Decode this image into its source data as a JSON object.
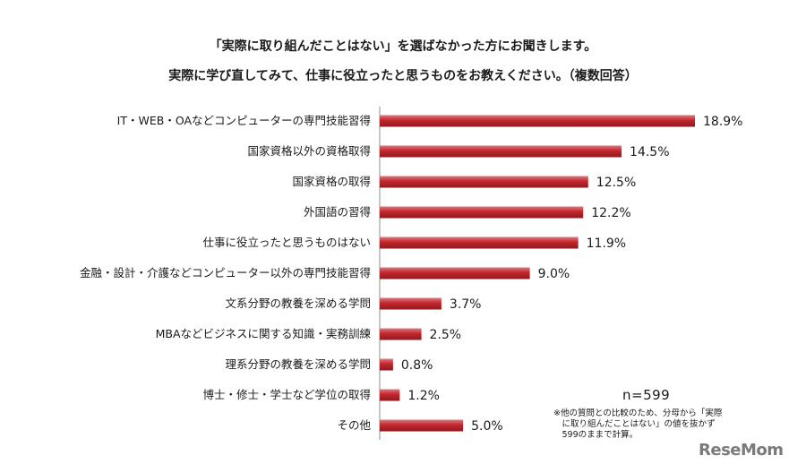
{
  "header": {
    "title_line1": "「実際に取り組んだことはない」を選ばなかった方にお聞きします。",
    "title_line2": "実際に学び直してみて、仕事に役立ったと思うものをお教えください。（複数回答）"
  },
  "chart_data": {
    "type": "bar",
    "orientation": "horizontal",
    "categories": [
      "IT・WEB・OAなどコンピューターの専門技能習得",
      "国家資格以外の資格取得",
      "国家資格の取得",
      "外国語の習得",
      "仕事に役立ったと思うものはない",
      "金融・設計・介護などコンピューター以外の専門技能習得",
      "文系分野の教養を深める学問",
      "MBAなどビジネスに関する知識・実務訓練",
      "理系分野の教養を深める学問",
      "博士・修士・学士など学位の取得",
      "その他"
    ],
    "values": [
      18.9,
      14.5,
      12.5,
      12.2,
      11.9,
      9.0,
      3.7,
      2.5,
      0.8,
      1.2,
      5.0
    ],
    "value_labels": [
      "18.9%",
      "14.5%",
      "12.5%",
      "12.2%",
      "11.9%",
      "9.0%",
      "3.7%",
      "2.5%",
      "0.8%",
      "1.2%",
      "5.0%"
    ],
    "bar_color": "#c0272d",
    "grid": false,
    "legend": "none"
  },
  "notes": {
    "sample_size": "n=599",
    "footnote": "※他の質問との比較のため、分母から「実際\n　に取り組んだことはない」の値を抜かず\n　599のままで計算。"
  },
  "brand": {
    "logo_text": "ReseMom"
  }
}
